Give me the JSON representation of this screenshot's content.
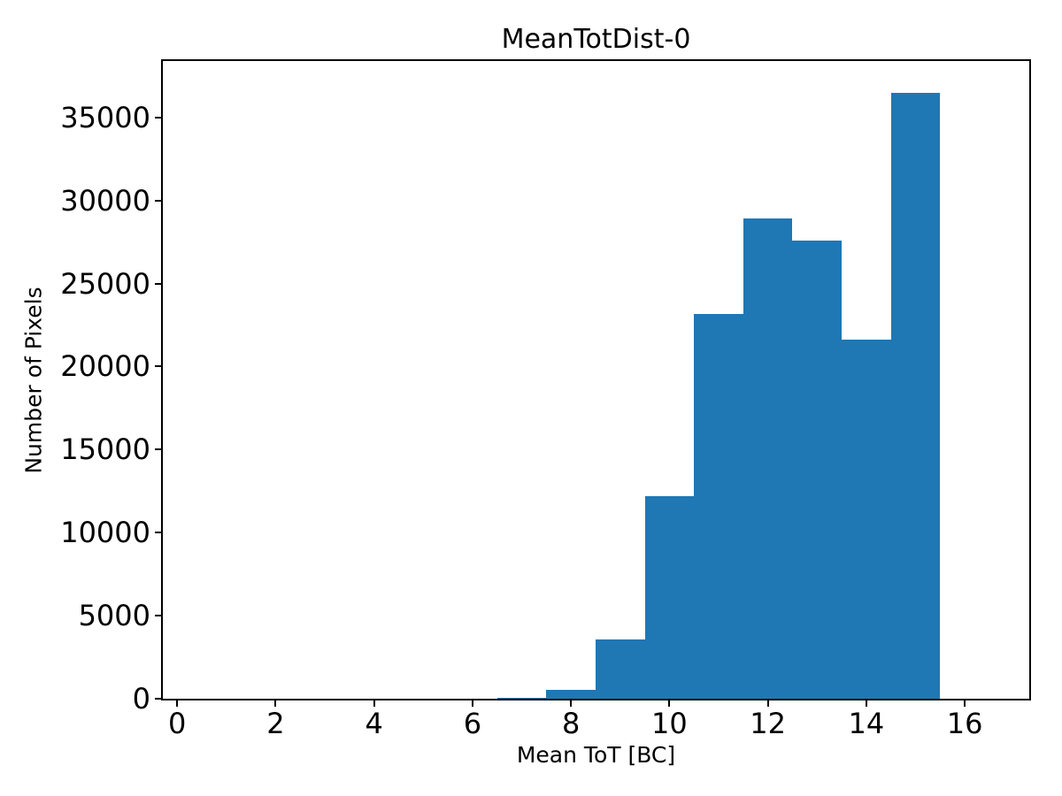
{
  "chart_data": {
    "type": "bar",
    "subtype": "histogram",
    "title": "MeanTotDist-0",
    "xlabel": "Mean ToT [BC]",
    "ylabel": "Number of Pixels",
    "bar_color": "#1f77b4",
    "background_color": "#ffffff",
    "spine_color": "#000000",
    "bin_edges": [
      6.5,
      7.5,
      8.5,
      9.5,
      10.5,
      11.5,
      12.5,
      13.5,
      14.5,
      15.5
    ],
    "counts": [
      80,
      550,
      3550,
      12200,
      23150,
      28900,
      27600,
      21650,
      36500
    ],
    "xlim": [
      -0.29,
      17.31
    ],
    "ylim": [
      0,
      38400
    ],
    "xticks": [
      0,
      2,
      4,
      6,
      8,
      10,
      12,
      14,
      16
    ],
    "yticks": [
      0,
      5000,
      10000,
      15000,
      20000,
      25000,
      30000,
      35000
    ],
    "grid": false,
    "legend": null
  }
}
